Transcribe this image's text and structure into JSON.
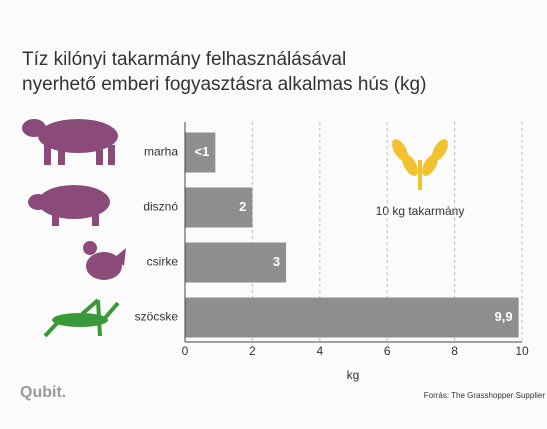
{
  "chart_data": {
    "type": "hbar",
    "title": [
      "Tíz kilónyi takarmány felhasználásával",
      "nyerhető emberi fogyasztásra alkalmas hús (kg)"
    ],
    "categories": [
      "marha",
      "disznó",
      "csirke",
      "szöcske"
    ],
    "values": [
      0.9,
      2,
      3,
      9.9
    ],
    "value_labels": [
      "<1",
      "2",
      "3",
      "9,9"
    ],
    "color": "#8e8e8e",
    "xlim": [
      0,
      10
    ],
    "xticks": [
      0,
      2,
      4,
      6,
      8,
      10
    ],
    "xlabel": "kg",
    "grid": true,
    "annotation": "10 kg takarmány",
    "brand": "Qubit.",
    "source": "Forrás: The Grasshopper Supplier"
  }
}
